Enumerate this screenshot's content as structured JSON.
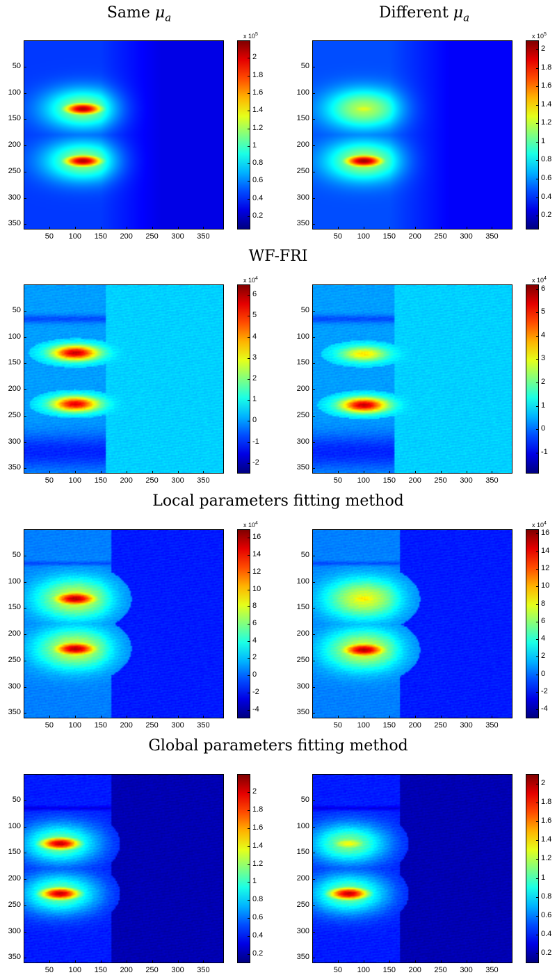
{
  "captions": {
    "col_left_prefix": "Same ",
    "col_right_prefix": "Different ",
    "mu_symbol": "μ",
    "mu_subscript": "a",
    "row2": "WF-FRI",
    "row3": "Local parameters fitting method",
    "row4": "Global parameters fitting method"
  },
  "colormap": "jet",
  "chart_data": [
    {
      "type": "heatmap",
      "row": 1,
      "column": "Same μa",
      "x_ticks": [
        50,
        100,
        150,
        200,
        250,
        300,
        350
      ],
      "y_ticks": [
        50,
        100,
        150,
        200,
        250,
        300,
        350
      ],
      "xlim": [
        0,
        390
      ],
      "ylim": [
        0,
        360
      ],
      "colorbar": {
        "multiplier": "x 10",
        "exponent": "5",
        "ticks": [
          "0.2",
          "0.4",
          "0.6",
          "0.8",
          "1",
          "1.2",
          "1.4",
          "1.6",
          "1.8",
          "2"
        ],
        "range": [
          0.05,
          2.2
        ]
      },
      "blobs": [
        {
          "x": 115,
          "y": 130,
          "level": 0.95
        },
        {
          "x": 115,
          "y": 230,
          "level": 0.95
        }
      ],
      "background_level": 0.1
    },
    {
      "type": "heatmap",
      "row": 1,
      "column": "Different μa",
      "x_ticks": [
        50,
        100,
        150,
        200,
        250,
        300,
        350
      ],
      "y_ticks": [
        50,
        100,
        150,
        200,
        250,
        300,
        350
      ],
      "xlim": [
        0,
        390
      ],
      "ylim": [
        0,
        360
      ],
      "colorbar": {
        "multiplier": "x 10",
        "exponent": "5",
        "ticks": [
          "0.2",
          "0.4",
          "0.6",
          "0.8",
          "1",
          "1.2",
          "1.4",
          "1.6",
          "1.8",
          "2"
        ],
        "range": [
          0.05,
          2.1
        ]
      },
      "blobs": [
        {
          "x": 100,
          "y": 130,
          "level": 0.6
        },
        {
          "x": 100,
          "y": 230,
          "level": 0.97
        }
      ],
      "background_level": 0.12
    },
    {
      "type": "heatmap",
      "row": 2,
      "column": "Same μa",
      "x_ticks": [
        50,
        100,
        150,
        200,
        250,
        300,
        350
      ],
      "y_ticks": [
        50,
        100,
        150,
        200,
        250,
        300,
        350
      ],
      "xlim": [
        0,
        390
      ],
      "ylim": [
        0,
        360
      ],
      "colorbar": {
        "multiplier": "x 10",
        "exponent": "4",
        "ticks": [
          "-2",
          "-1",
          "0",
          "1",
          "2",
          "3",
          "4",
          "5",
          "6"
        ],
        "range": [
          -2.5,
          6.5
        ]
      },
      "blobs": [
        {
          "x": 100,
          "y": 130,
          "level": 0.93
        },
        {
          "x": 100,
          "y": 228,
          "level": 0.9
        }
      ],
      "background_level": 0.33
    },
    {
      "type": "heatmap",
      "row": 2,
      "column": "Different μa",
      "x_ticks": [
        50,
        100,
        150,
        200,
        250,
        300,
        350
      ],
      "y_ticks": [
        50,
        100,
        150,
        200,
        250,
        300,
        350
      ],
      "xlim": [
        0,
        390
      ],
      "ylim": [
        0,
        360
      ],
      "colorbar": {
        "multiplier": "x 10",
        "exponent": "4",
        "ticks": [
          "-1",
          "0",
          "1",
          "2",
          "3",
          "4",
          "5",
          "6"
        ],
        "range": [
          -1.9,
          6.2
        ]
      },
      "blobs": [
        {
          "x": 100,
          "y": 132,
          "level": 0.65
        },
        {
          "x": 100,
          "y": 230,
          "level": 0.93
        }
      ],
      "background_level": 0.33
    },
    {
      "type": "heatmap",
      "row": 3,
      "column": "Same μa",
      "x_ticks": [
        50,
        100,
        150,
        200,
        250,
        300,
        350
      ],
      "y_ticks": [
        50,
        100,
        150,
        200,
        250,
        300,
        350
      ],
      "xlim": [
        0,
        390
      ],
      "ylim": [
        0,
        360
      ],
      "colorbar": {
        "multiplier": "x 10",
        "exponent": "4",
        "ticks": [
          "-4",
          "-2",
          "0",
          "2",
          "4",
          "6",
          "8",
          "10",
          "12",
          "14",
          "16"
        ],
        "range": [
          -5,
          17
        ]
      },
      "blobs": [
        {
          "x": 100,
          "y": 132,
          "level": 0.95
        },
        {
          "x": 100,
          "y": 228,
          "level": 0.95
        }
      ],
      "background_level": 0.25
    },
    {
      "type": "heatmap",
      "row": 3,
      "column": "Different μa",
      "x_ticks": [
        50,
        100,
        150,
        200,
        250,
        300,
        350
      ],
      "y_ticks": [
        50,
        100,
        150,
        200,
        250,
        300,
        350
      ],
      "xlim": [
        0,
        390
      ],
      "ylim": [
        0,
        360
      ],
      "colorbar": {
        "multiplier": "x 10",
        "exponent": "4",
        "ticks": [
          "-4",
          "-2",
          "0",
          "2",
          "4",
          "6",
          "8",
          "10",
          "12",
          "14",
          "16"
        ],
        "range": [
          -5,
          16.5
        ]
      },
      "blobs": [
        {
          "x": 100,
          "y": 132,
          "level": 0.65
        },
        {
          "x": 100,
          "y": 230,
          "level": 0.95
        }
      ],
      "background_level": 0.25
    },
    {
      "type": "heatmap",
      "row": 4,
      "column": "Same μa",
      "x_ticks": [
        50,
        100,
        150,
        200,
        250,
        300,
        350
      ],
      "y_ticks": [
        50,
        100,
        150,
        200,
        250,
        300,
        350
      ],
      "xlim": [
        0,
        390
      ],
      "ylim": [
        0,
        360
      ],
      "colorbar": {
        "ticks": [
          "0.2",
          "0.4",
          "0.6",
          "0.8",
          "1",
          "1.2",
          "1.4",
          "1.6",
          "1.8",
          "2"
        ],
        "range": [
          0.1,
          2.2
        ]
      },
      "blobs": [
        {
          "x": 70,
          "y": 132,
          "level": 0.93
        },
        {
          "x": 70,
          "y": 228,
          "level": 0.93
        }
      ],
      "background_level": 0.15
    },
    {
      "type": "heatmap",
      "row": 4,
      "column": "Different μa",
      "x_ticks": [
        50,
        100,
        150,
        200,
        250,
        300,
        350
      ],
      "y_ticks": [
        50,
        100,
        150,
        200,
        250,
        300,
        350
      ],
      "xlim": [
        0,
        390
      ],
      "ylim": [
        0,
        360
      ],
      "colorbar": {
        "ticks": [
          "0.2",
          "0.4",
          "0.6",
          "0.8",
          "1",
          "1.2",
          "1.4",
          "1.6",
          "1.8",
          "2"
        ],
        "range": [
          0.1,
          2.1
        ]
      },
      "blobs": [
        {
          "x": 70,
          "y": 132,
          "level": 0.62
        },
        {
          "x": 70,
          "y": 228,
          "level": 0.93
        }
      ],
      "background_level": 0.15
    }
  ]
}
